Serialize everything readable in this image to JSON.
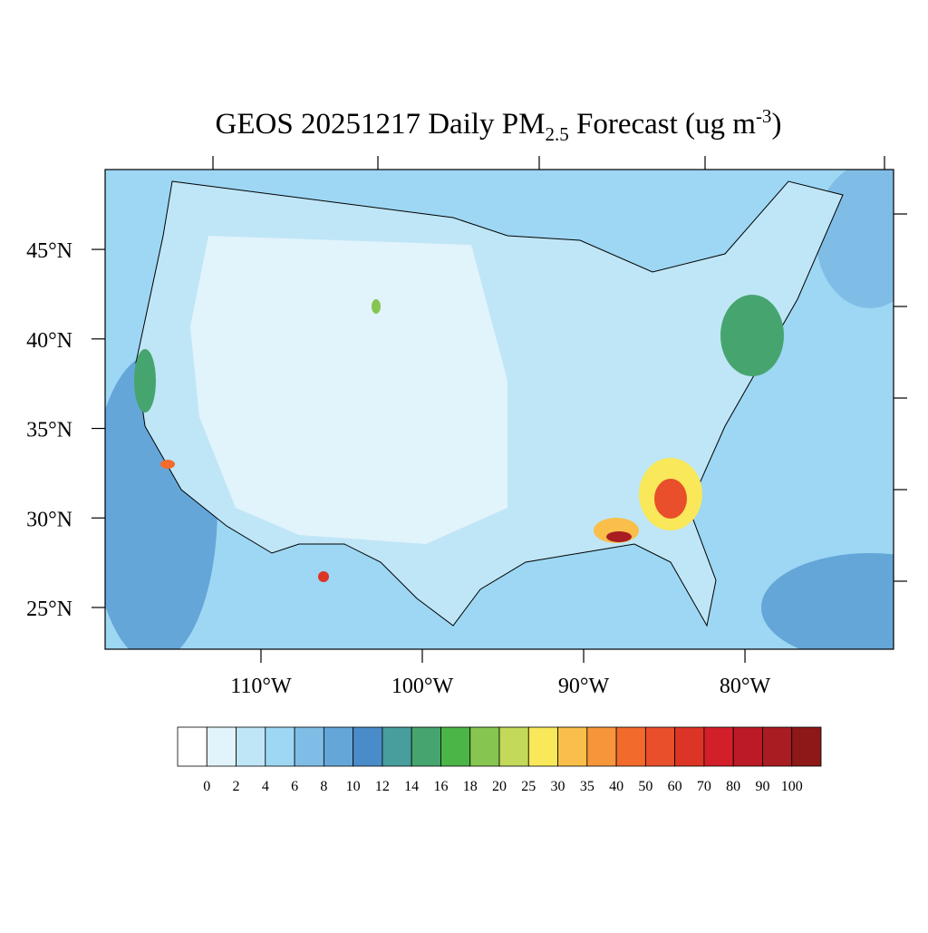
{
  "chart_data": {
    "type": "map",
    "title": {
      "main": "GEOS 20251217 Daily PM",
      "sub": "2.5",
      "rest": " Forecast (ug m",
      "sup": "-3",
      "end": ")"
    },
    "xlim": [
      -119.66,
      -70.79
    ],
    "ylim": [
      22.67,
      49.46
    ],
    "xticks": [
      {
        "value": -110,
        "label": "110°W"
      },
      {
        "value": -100,
        "label": "100°W"
      },
      {
        "value": -90,
        "label": "90°W"
      },
      {
        "value": -80,
        "label": "80°W"
      }
    ],
    "yticks": [
      {
        "value": 25,
        "label": "25°N"
      },
      {
        "value": 30,
        "label": "30°N"
      },
      {
        "value": 35,
        "label": "35°N"
      },
      {
        "value": 40,
        "label": "40°N"
      },
      {
        "value": 45,
        "label": "45°N"
      }
    ],
    "colorbar": {
      "levels": [
        0,
        2,
        4,
        6,
        8,
        10,
        12,
        14,
        16,
        18,
        20,
        25,
        30,
        35,
        40,
        50,
        60,
        70,
        80,
        90,
        100
      ],
      "colors": [
        "#ffffff",
        "#e1f3fb",
        "#bfe6f7",
        "#9dd7f3",
        "#80bde6",
        "#65a6d9",
        "#4a8bc9",
        "#479e9c",
        "#46a56f",
        "#4cb548",
        "#86c650",
        "#c2d95a",
        "#f8e85a",
        "#f9bf4a",
        "#f7953b",
        "#f26a2c",
        "#e84f2a",
        "#dc3526",
        "#d21f2a",
        "#bc1a26",
        "#a81c22",
        "#8e1818"
      ]
    }
  }
}
